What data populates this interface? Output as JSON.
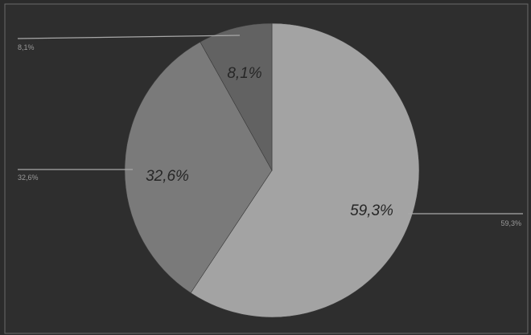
{
  "chart_data": {
    "type": "pie",
    "slices": [
      {
        "value": 59.3,
        "label": "59,3%",
        "outer_label": "59,3%",
        "color": "#a3a3a3"
      },
      {
        "value": 32.6,
        "label": "32,6%",
        "outer_label": "32,6%",
        "color": "#7a7a7a"
      },
      {
        "value": 8.1,
        "label": "8,1%",
        "outer_label": "8,1%",
        "color": "#626262"
      }
    ],
    "start_angle_deg": 0,
    "direction": "clockwise",
    "legend": false,
    "grid": false
  }
}
